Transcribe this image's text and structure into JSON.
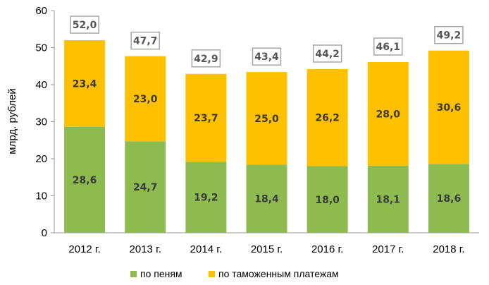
{
  "chart_data": {
    "type": "bar",
    "stacked": true,
    "categories": [
      "2012 г.",
      "2013 г.",
      "2014 г.",
      "2015 г.",
      "2016 г.",
      "2017 г.",
      "2018 г."
    ],
    "series": [
      {
        "name": "по пеням",
        "color": "#8dbb4f",
        "values": [
          28.6,
          24.7,
          19.2,
          18.4,
          18.0,
          18.1,
          18.6
        ],
        "labels": [
          "28,6",
          "24,7",
          "19,2",
          "18,4",
          "18,0",
          "18,1",
          "18,6"
        ]
      },
      {
        "name": "по таможенным платежам",
        "color": "#ffc000",
        "values": [
          23.4,
          23.0,
          23.7,
          25.0,
          26.2,
          28.0,
          30.6
        ],
        "labels": [
          "23,4",
          "23,0",
          "23,7",
          "25,0",
          "26,2",
          "28,0",
          "30,6"
        ]
      }
    ],
    "totals": [
      52.0,
      47.7,
      42.9,
      43.4,
      44.2,
      46.1,
      49.2
    ],
    "total_labels": [
      "52,0",
      "47,7",
      "42,9",
      "43,4",
      "44,2",
      "46,1",
      "49,2"
    ],
    "ylabel": "млрд. рублей",
    "xlabel": "",
    "ylim": [
      0,
      60
    ],
    "yticks": [
      0,
      10,
      20,
      30,
      40,
      50,
      60
    ],
    "legend_position": "bottom"
  }
}
